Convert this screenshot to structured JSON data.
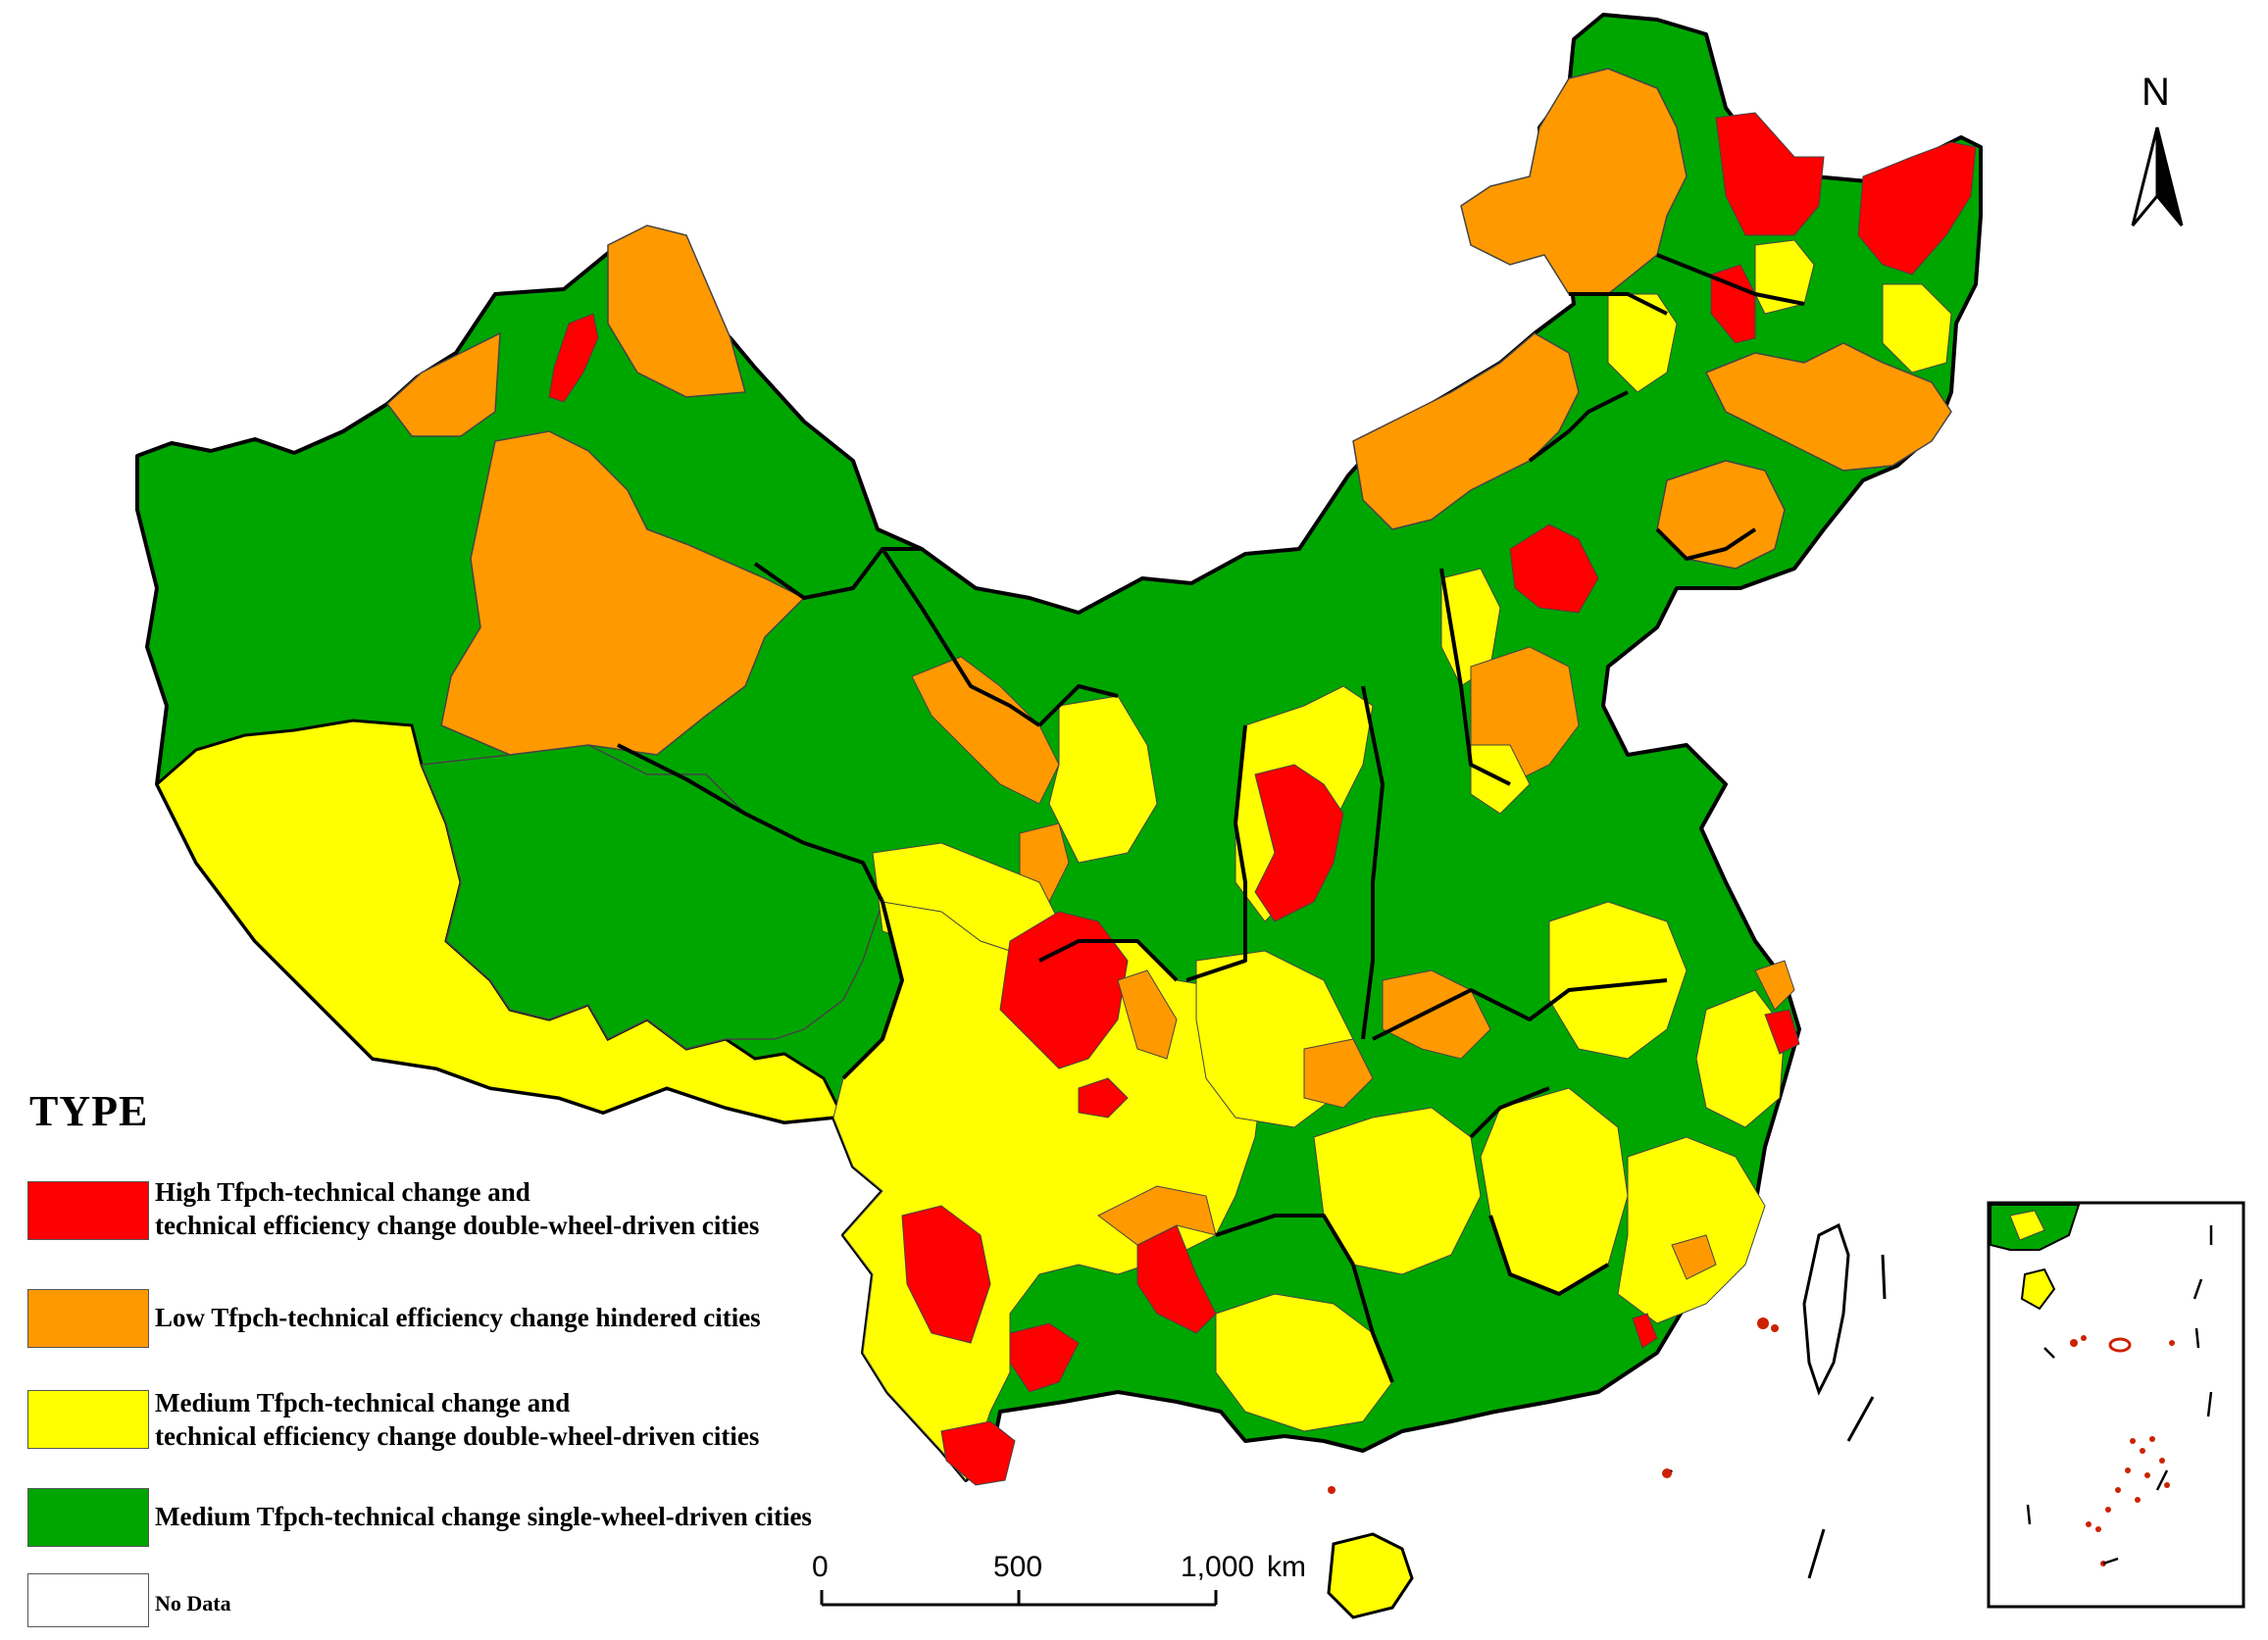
{
  "legend": {
    "title": "TYPE",
    "items": [
      {
        "key": "high",
        "color": "#ff0000",
        "line1": "High Tfpch-technical change and",
        "line2": "technical efficiency change double-wheel-driven cities"
      },
      {
        "key": "low",
        "color": "#ff9900",
        "line1": "Low Tfpch-technical efficiency change hindered cities",
        "line2": ""
      },
      {
        "key": "medium_double",
        "color": "#ffff00",
        "line1": "Medium Tfpch-technical change and",
        "line2": "technical efficiency change double-wheel-driven cities"
      },
      {
        "key": "medium_single",
        "color": "#00a600",
        "line1": "Medium Tfpch-technical change single-wheel-driven cities",
        "line2": ""
      },
      {
        "key": "nodata",
        "color": "#ffffff",
        "line1": "No Data",
        "line2": ""
      }
    ]
  },
  "scale_bar": {
    "labels": [
      "0",
      "500",
      "1,000"
    ],
    "unit": "km"
  },
  "north_arrow": {
    "label": "N"
  },
  "colors": {
    "border": "#000000",
    "inset_islands": "#cc2200"
  }
}
